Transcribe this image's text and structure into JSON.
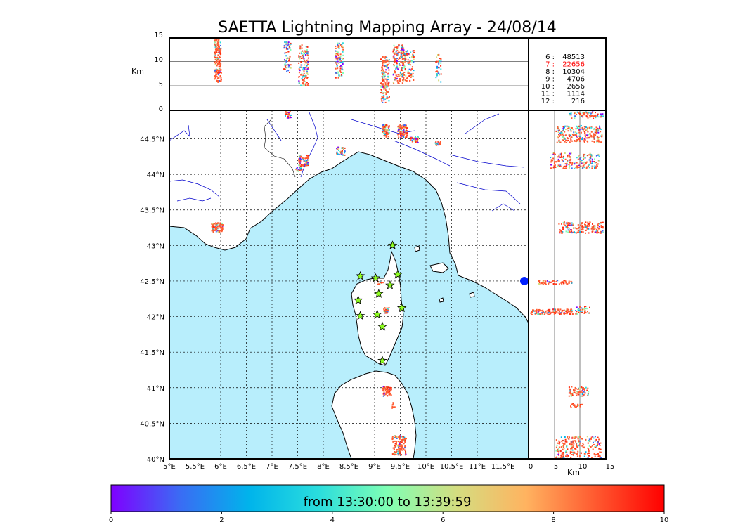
{
  "title": "SAETTA Lightning Mapping Array - 24/08/14",
  "altitude_unit": "Km",
  "alt_ticks": [
    "15",
    "10",
    "5",
    "0"
  ],
  "alt_bottom_ticks": [
    "0",
    "5",
    "10",
    "15"
  ],
  "lon_ticks": [
    "5°E",
    "5.5°E",
    "6°E",
    "6.5°E",
    "7°E",
    "7.5°E",
    "8°E",
    "8.5°E",
    "9°E",
    "9.5°E",
    "10°E",
    "10.5°E",
    "11°E",
    "11.5°E"
  ],
  "lat_ticks": [
    "44.5°N",
    "44°N",
    "43.5°N",
    "43°N",
    "42.5°N",
    "42°N",
    "41.5°N",
    "41°N",
    "40.5°N",
    "40°N"
  ],
  "counts": [
    {
      "label": "6 :",
      "value": "48513",
      "color": "#000000"
    },
    {
      "label": "7 :",
      "value": "22656",
      "color": "#ff0000"
    },
    {
      "label": "8 :",
      "value": "10304",
      "color": "#000000"
    },
    {
      "label": "9 :",
      "value": "4706",
      "color": "#000000"
    },
    {
      "label": "10 :",
      "value": "2656",
      "color": "#000000"
    },
    {
      "label": "11 :",
      "value": "1114",
      "color": "#000000"
    },
    {
      "label": "12 :",
      "value": "216",
      "color": "#000000"
    }
  ],
  "colorbar": {
    "label": "from 13:30:00 to 13:39:59",
    "ticks": [
      "0",
      "2",
      "4",
      "6",
      "8",
      "10"
    ],
    "colors": [
      "#7f00ff",
      "#3a6cf4",
      "#00b4eb",
      "#2adddd",
      "#80ffb4",
      "#d4dd80",
      "#ffb360",
      "#ff5a30",
      "#ff0000"
    ]
  },
  "map": {
    "sea_color": "#b8eefc",
    "land_color": "#ffffff",
    "river_color": "#0000cc",
    "station_color": "#8fff1f",
    "stations": [
      {
        "lon": 9.35,
        "lat": 43.0
      },
      {
        "lon": 8.72,
        "lat": 42.57
      },
      {
        "lon": 9.02,
        "lat": 42.54
      },
      {
        "lon": 9.45,
        "lat": 42.59
      },
      {
        "lon": 9.3,
        "lat": 42.44
      },
      {
        "lon": 9.08,
        "lat": 42.32
      },
      {
        "lon": 8.68,
        "lat": 42.23
      },
      {
        "lon": 9.53,
        "lat": 42.12
      },
      {
        "lon": 9.05,
        "lat": 42.03
      },
      {
        "lon": 8.72,
        "lat": 42.01
      },
      {
        "lon": 9.15,
        "lat": 41.86
      },
      {
        "lon": 9.15,
        "lat": 41.38
      }
    ]
  }
}
